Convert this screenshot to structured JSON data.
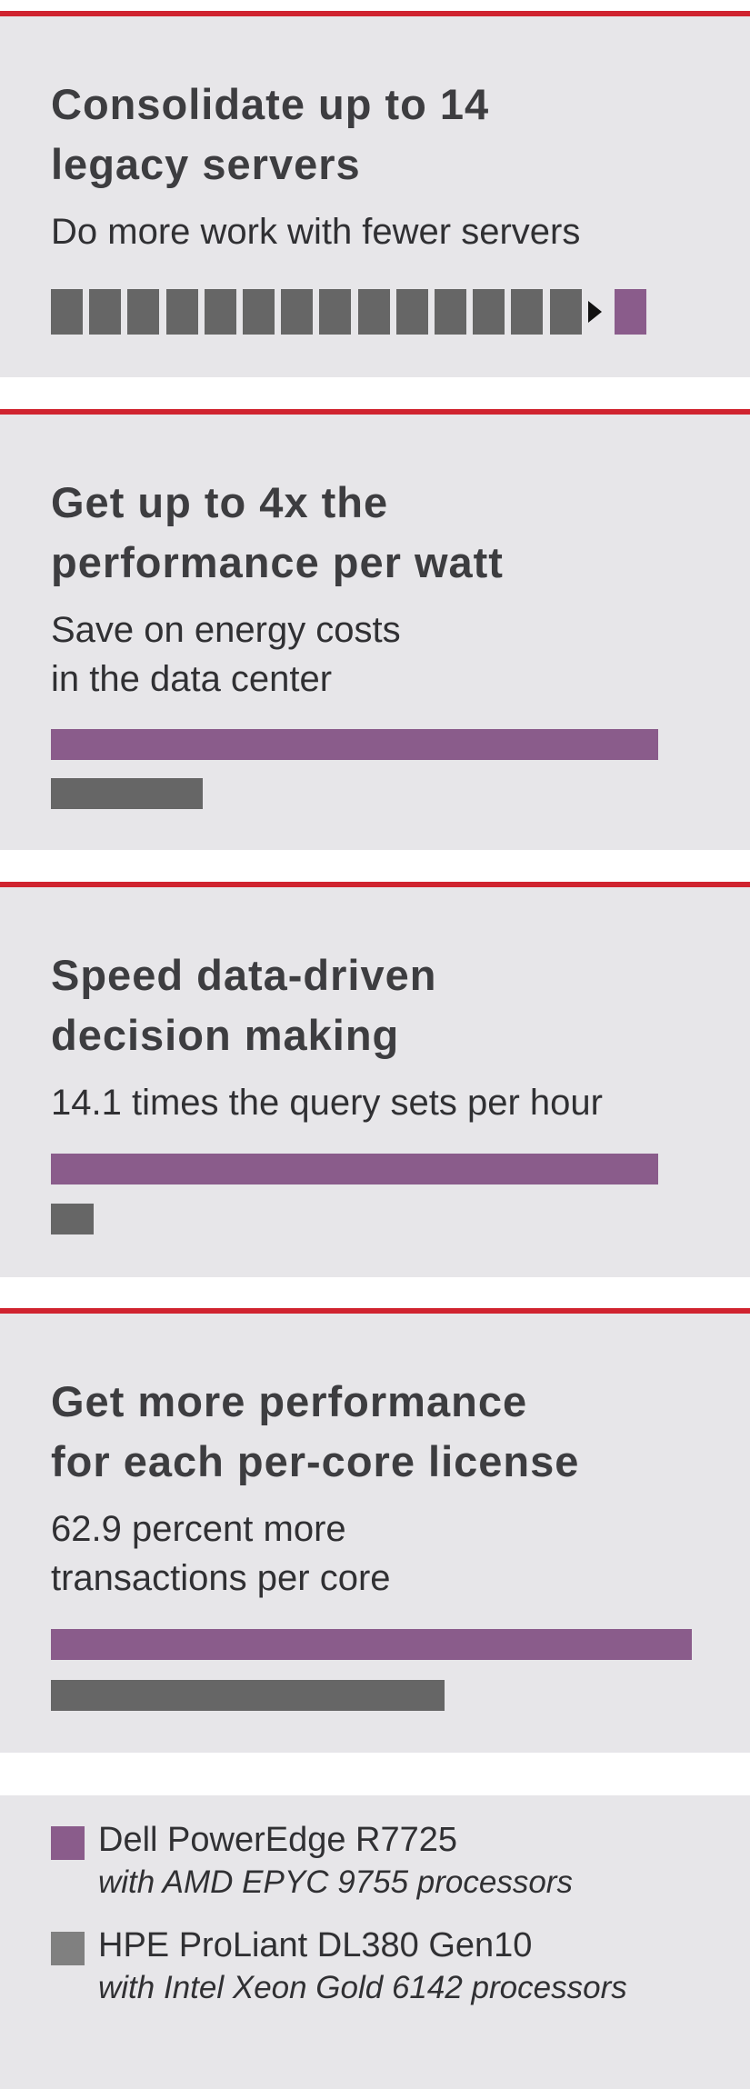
{
  "colors": {
    "accent_red": "#d0232f",
    "card_background": "#e7e6e9",
    "dell": "#8a5c8b",
    "hpe": "#666666",
    "text": "#3d3d40"
  },
  "cards": [
    {
      "headline_line1": "Consolidate up to 14",
      "headline_line2": "legacy servers",
      "sub_line1": "Do more work with fewer servers",
      "sub_line2": ""
    },
    {
      "headline_line1": "Get up to 4x the",
      "headline_line2": "performance per watt",
      "sub_line1": "Save on energy costs",
      "sub_line2": "in the data center"
    },
    {
      "headline_line1": "Speed data-driven",
      "headline_line2": "decision making",
      "sub_line1": "14.1 times the query sets per hour",
      "sub_line2": ""
    },
    {
      "headline_line1": "Get more performance",
      "headline_line2": "for each per-core license",
      "sub_line1": "62.9 percent more",
      "sub_line2": "transactions per core"
    }
  ],
  "legend": {
    "dell": {
      "name": "Dell PowerEdge R7725",
      "desc": "with AMD EPYC 9755 processors"
    },
    "hpe": {
      "name": "HPE ProLiant DL380 Gen10",
      "desc": "with Intel Xeon Gold 6142 processors"
    }
  },
  "chart_data": [
    {
      "type": "icon-array",
      "legacy_servers": 14,
      "new_servers": 1,
      "icons": [
        "server-block",
        "arrow-icon"
      ]
    },
    {
      "type": "bar",
      "series": [
        {
          "name": "Dell PowerEdge R7725",
          "value": 4.0
        },
        {
          "name": "HPE ProLiant DL380 Gen10",
          "value": 1.0
        }
      ]
    },
    {
      "type": "bar",
      "series": [
        {
          "name": "Dell PowerEdge R7725",
          "value": 14.1
        },
        {
          "name": "HPE ProLiant DL380 Gen10",
          "value": 1.0
        }
      ]
    },
    {
      "type": "bar",
      "series": [
        {
          "name": "Dell PowerEdge R7725",
          "value": 1.629
        },
        {
          "name": "HPE ProLiant DL380 Gen10",
          "value": 1.0
        }
      ]
    }
  ]
}
